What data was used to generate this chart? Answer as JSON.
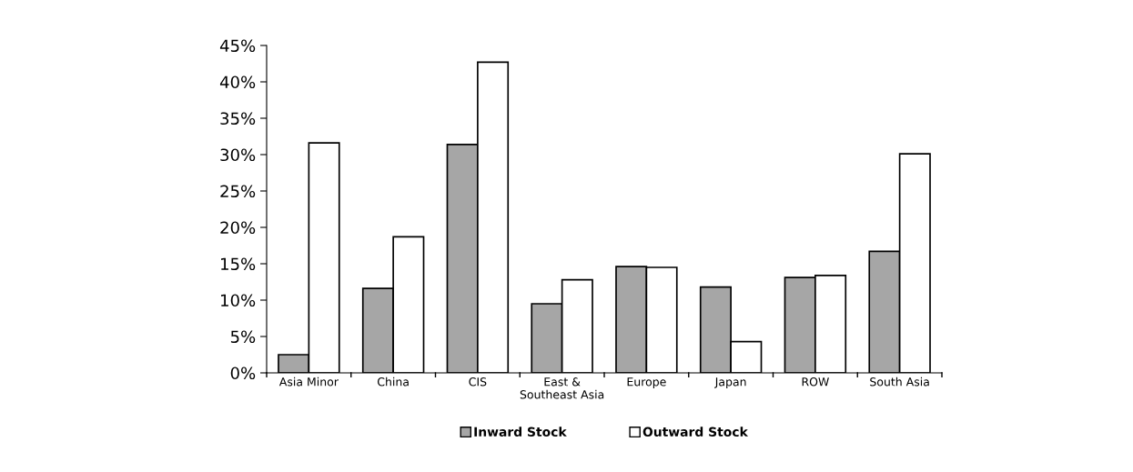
{
  "chart_data": {
    "type": "bar",
    "categories": [
      "Asia Minor",
      "China",
      "CIS",
      "East &\nSoutheast Asia",
      "Europe",
      "Japan",
      "ROW",
      "South Asia"
    ],
    "series": [
      {
        "name": "Inward Stock",
        "color": "#a6a6a6",
        "values": [
          2.5,
          11.6,
          31.4,
          9.5,
          14.6,
          11.8,
          13.1,
          16.7
        ]
      },
      {
        "name": "Outward Stock",
        "color": "#ffffff",
        "values": [
          31.6,
          18.7,
          42.7,
          12.8,
          14.5,
          4.3,
          13.4,
          30.1
        ]
      }
    ],
    "ylim": [
      0,
      45
    ],
    "yticks": [
      {
        "value": 0,
        "label": "0%"
      },
      {
        "value": 5,
        "label": "5%"
      },
      {
        "value": 10,
        "label": "10%"
      },
      {
        "value": 15,
        "label": "15%"
      },
      {
        "value": 20,
        "label": "20%"
      },
      {
        "value": 25,
        "label": "25%"
      },
      {
        "value": 30,
        "label": "30%"
      },
      {
        "value": 35,
        "label": "35%"
      },
      {
        "value": 40,
        "label": "40%"
      },
      {
        "value": 45,
        "label": "45%"
      }
    ],
    "grid": false,
    "legend": "bottom"
  }
}
